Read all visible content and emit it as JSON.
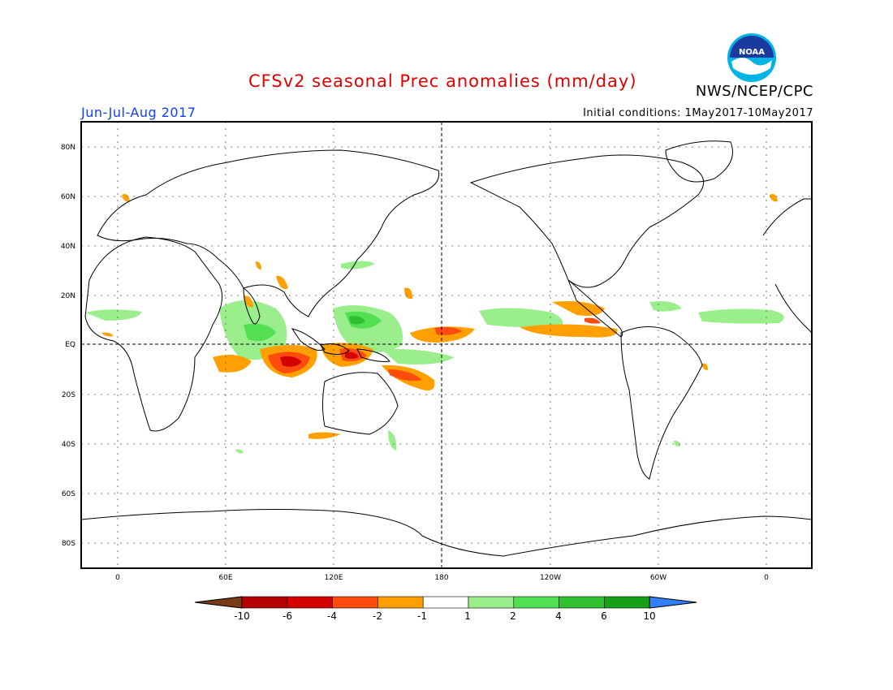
{
  "header": {
    "title": "CFSv2 seasonal Prec anomalies (mm/day)",
    "period": "Jun-Jul-Aug 2017",
    "initial_conditions": "Initial conditions: 1May2017-10May2017",
    "agency": "NWS/NCEP/CPC",
    "logo_text": "NOAA"
  },
  "map": {
    "lat_labels": [
      "80N",
      "60N",
      "40N",
      "20N",
      "EQ",
      "20S",
      "40S",
      "60S",
      "80S"
    ],
    "lon_labels": [
      "0",
      "60E",
      "120E",
      "180",
      "120W",
      "60W",
      "0"
    ]
  },
  "colorbar": {
    "labels": [
      "-10",
      "-6",
      "-4",
      "-2",
      "-1",
      "1",
      "2",
      "4",
      "6",
      "10"
    ],
    "colors": [
      "#7a3a14",
      "#b40000",
      "#d40000",
      "#ff4a10",
      "#ffa000",
      "#ffffff",
      "#9aef8c",
      "#52e052",
      "#2ec02e",
      "#16a016",
      "#2f7fff"
    ]
  }
}
